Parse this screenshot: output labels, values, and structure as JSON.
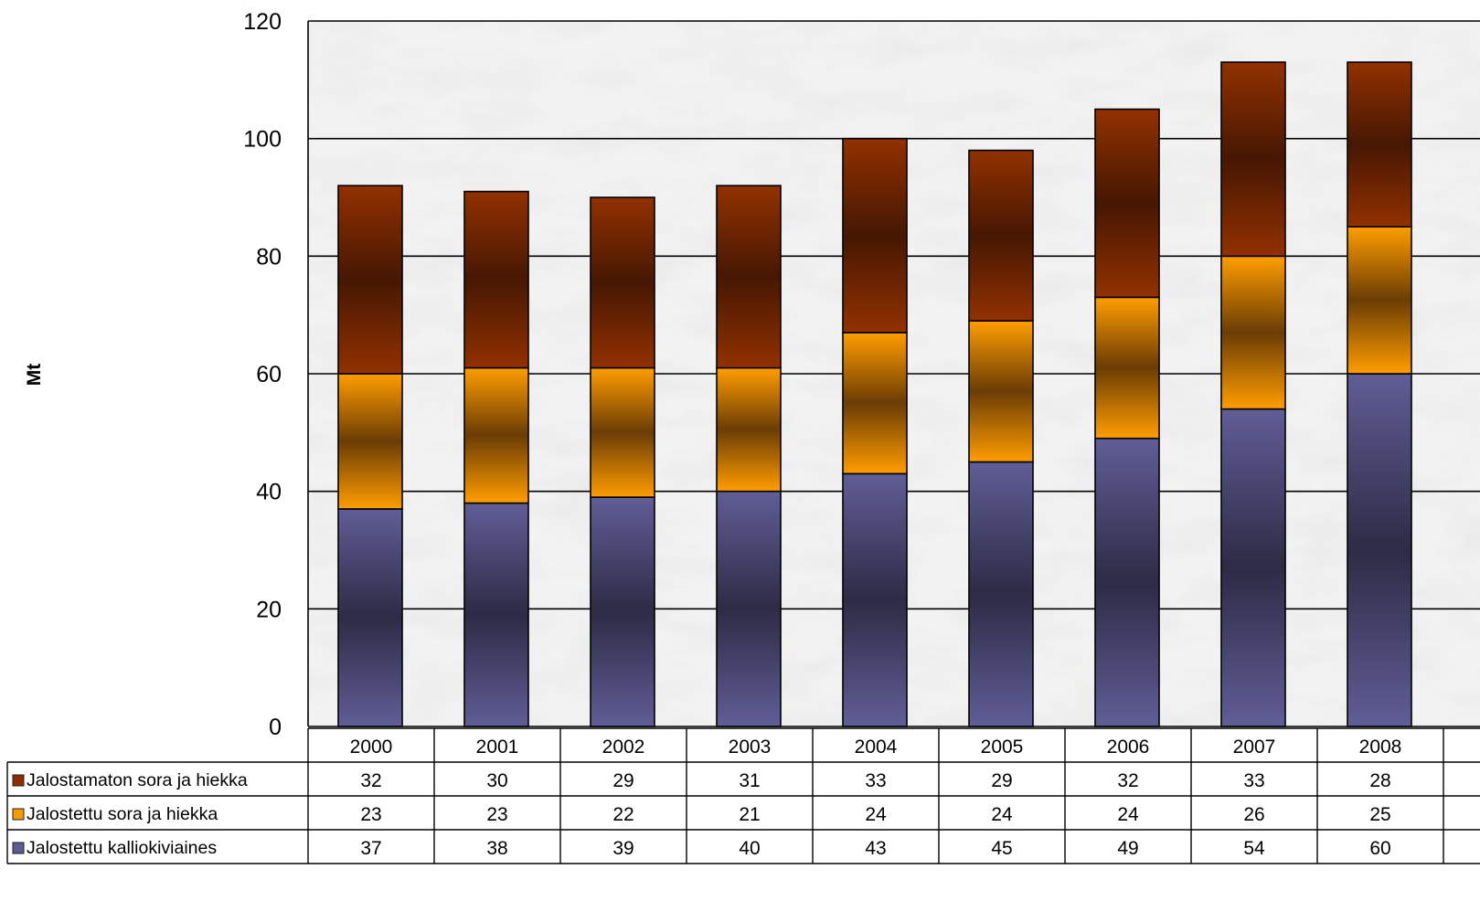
{
  "chart_data": {
    "type": "bar",
    "stacked": true,
    "title": "",
    "ylabel": "Mt",
    "xlabel": "",
    "ylim": [
      0,
      120
    ],
    "yticks": [
      0,
      20,
      40,
      60,
      80,
      100,
      120
    ],
    "grid": true,
    "legend": "table-left",
    "categories": [
      "2000",
      "2001",
      "2002",
      "2003",
      "2004",
      "2005",
      "2006",
      "2007",
      "2008"
    ],
    "series": [
      {
        "name": "Jalostettu kalliokiviaines",
        "values": [
          37,
          38,
          39,
          40,
          43,
          45,
          49,
          54,
          60
        ],
        "color": "#5e5a92"
      },
      {
        "name": "Jalostettu sora ja hiekka",
        "values": [
          23,
          23,
          22,
          21,
          24,
          24,
          24,
          26,
          25
        ],
        "color": "#f59a00"
      },
      {
        "name": "Jalostamaton sora ja hiekka",
        "values": [
          32,
          30,
          29,
          31,
          33,
          29,
          32,
          33,
          28
        ],
        "color": "#8c2e00"
      }
    ],
    "table_row_order": [
      "Jalostamaton sora ja hiekka",
      "Jalostettu sora ja hiekka",
      "Jalostettu kalliokiviaines"
    ]
  }
}
